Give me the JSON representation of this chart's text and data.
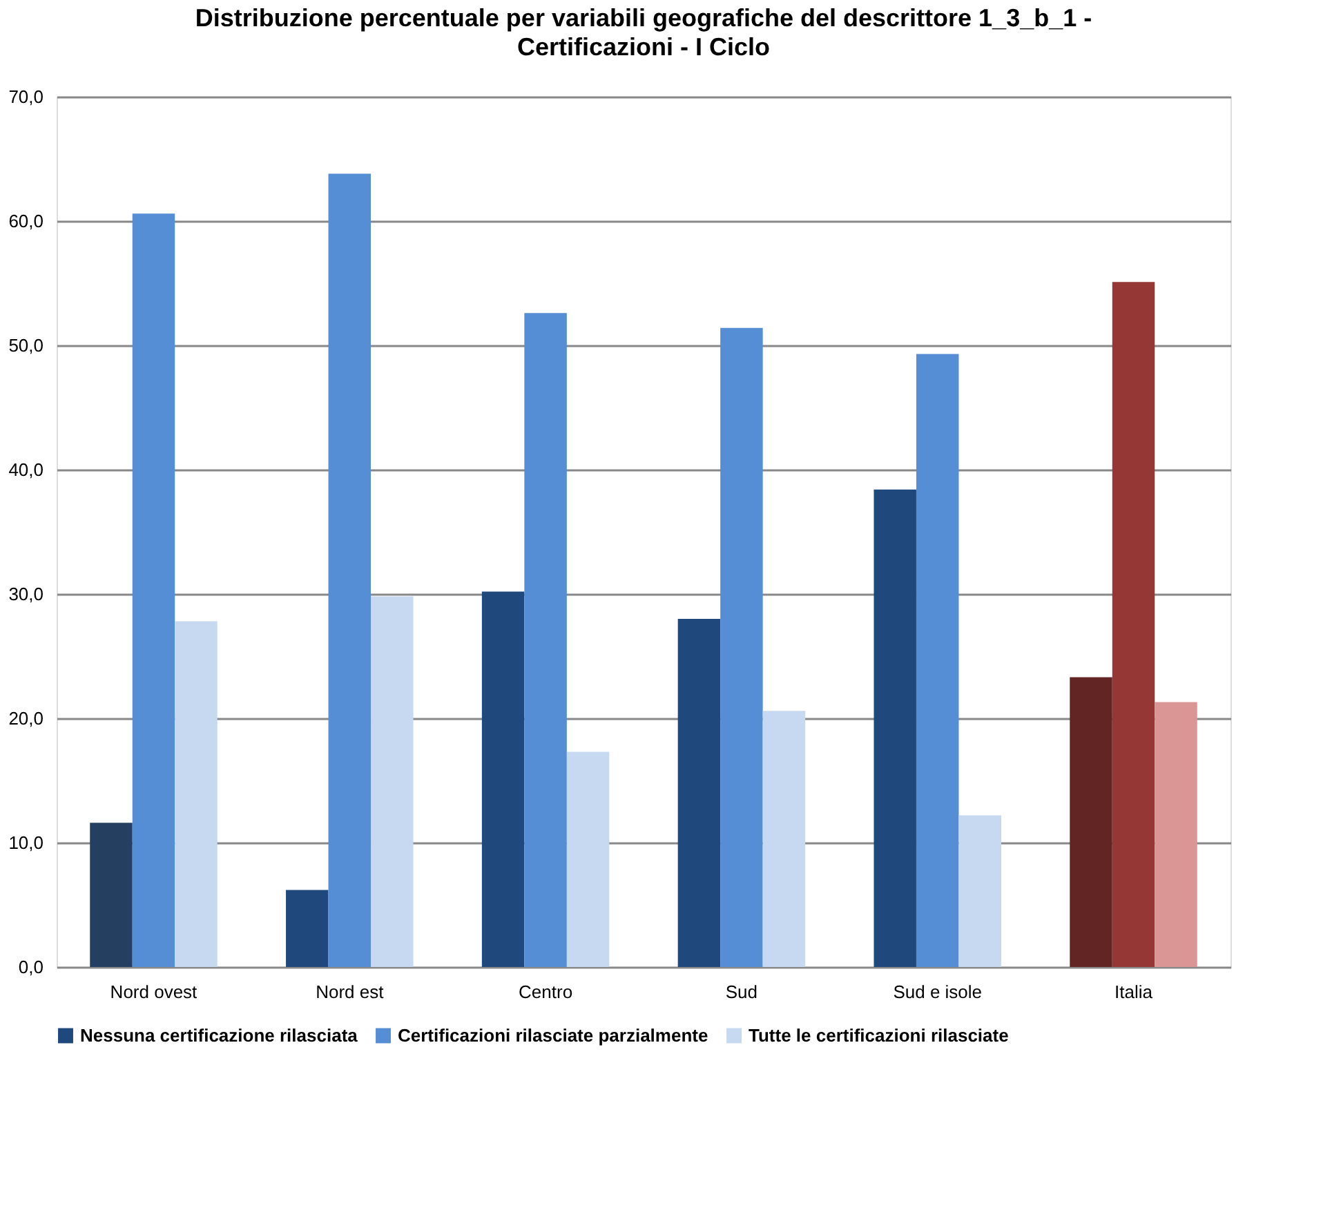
{
  "chart_data": {
    "type": "bar",
    "title": "Distribuzione percentuale per variabili geografiche del descrittore 1_3_b_1 - Certificazioni - I Ciclo",
    "categories": [
      "Nord ovest",
      "Nord est",
      "Centro",
      "Sud",
      "Sud e isole",
      "Italia"
    ],
    "series": [
      {
        "name": "Nessuna certificazione rilasciata",
        "color": "#1f497d",
        "colors": [
          "#243f60",
          "#1f497d",
          "#1f497d",
          "#1f497d",
          "#1f497d",
          "#632523"
        ],
        "values": [
          11.6,
          6.2,
          30.2,
          28.0,
          38.4,
          23.3
        ]
      },
      {
        "name": "Certificazioni rilasciate parzialmente",
        "color": "#558ed5",
        "colors": [
          "#558ed5",
          "#558ed5",
          "#558ed5",
          "#558ed5",
          "#558ed5",
          "#953735"
        ],
        "values": [
          60.6,
          63.8,
          52.6,
          51.4,
          49.3,
          55.1
        ]
      },
      {
        "name": "Tutte le certificazioni rilasciate",
        "color": "#c6d9f1",
        "colors": [
          "#c6d9f1",
          "#c6d9f1",
          "#c6d9f1",
          "#c6d9f1",
          "#c6d9f1",
          "#d99694"
        ],
        "values": [
          27.8,
          29.8,
          17.3,
          20.6,
          12.2,
          21.3
        ]
      }
    ],
    "ylim": [
      0,
      70
    ],
    "yticks": [
      {
        "value": 0,
        "label": "0,0"
      },
      {
        "value": 10,
        "label": "10,0"
      },
      {
        "value": 20,
        "label": "20,0"
      },
      {
        "value": 30,
        "label": "30,0"
      },
      {
        "value": 40,
        "label": "40,0"
      },
      {
        "value": 50,
        "label": "50,0"
      },
      {
        "value": 60,
        "label": "60,0"
      },
      {
        "value": 70,
        "label": "70,0"
      }
    ],
    "grid": "y",
    "legend": "bottom"
  }
}
